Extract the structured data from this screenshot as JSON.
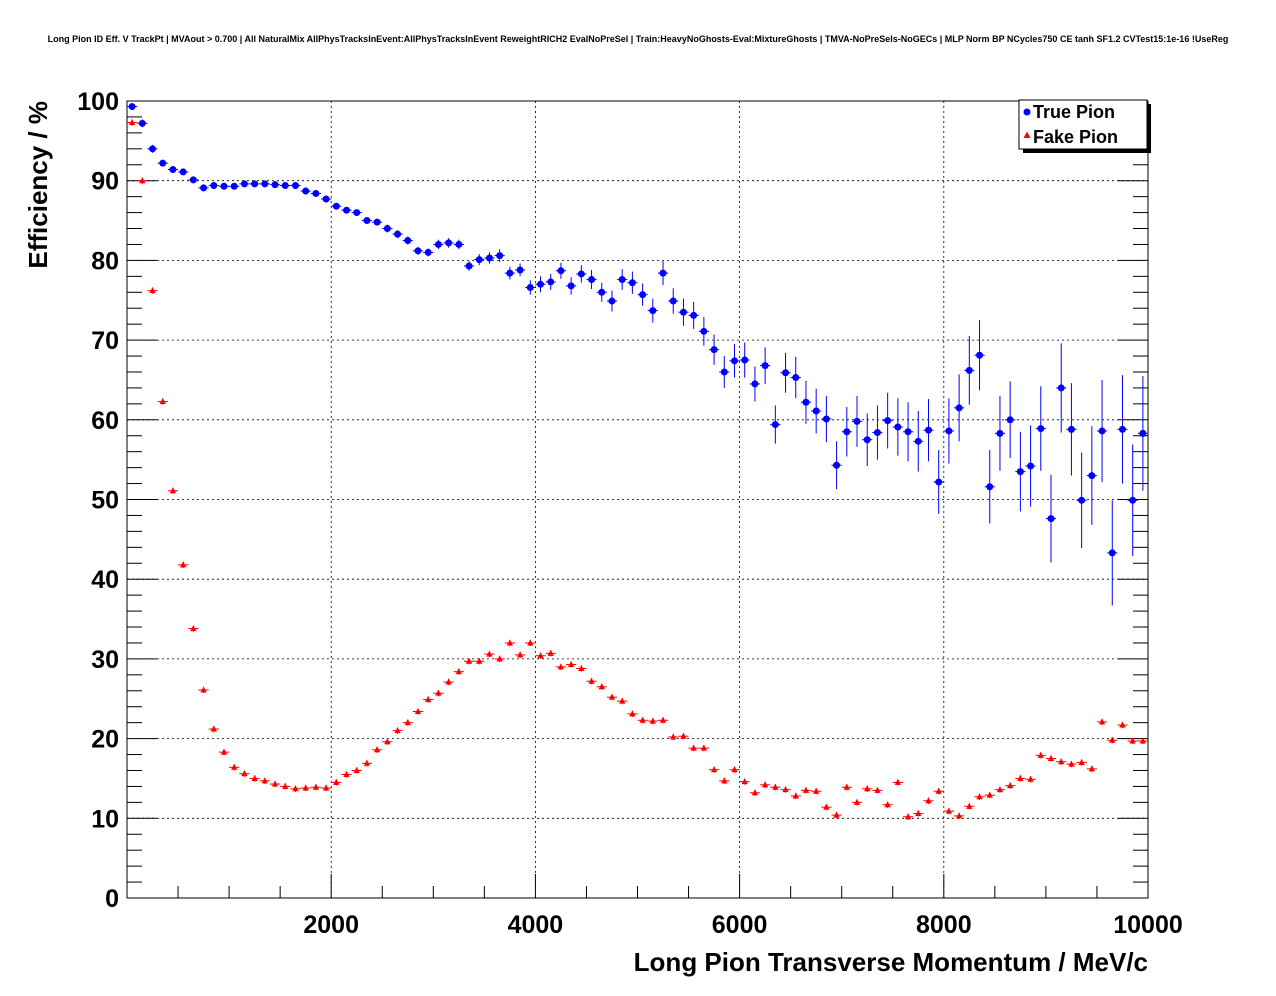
{
  "chart_data": {
    "type": "scatter",
    "title": "Long Pion ID Eff. V TrackPt | MVAout > 0.700 | All NaturalMix AllPhysTracksInEvent:AllPhysTracksInEvent ReweightRICH2 EvalNoPreSel | Train:HeavyNoGhosts-Eval:MixtureGhosts | TMVA-NoPreSels-NoGECs | MLP Norm BP NCycles750 CE tanh SF1.2 CVTest15:1e-16 !UseReg",
    "xlabel": "Long Pion Transverse Momentum / MeV/c",
    "ylabel": "Efficiency / %",
    "xlim": [
      0,
      10000
    ],
    "ylim": [
      0,
      100
    ],
    "grid": true,
    "legend_position": "top-right",
    "x_ticks": [
      2000,
      4000,
      6000,
      8000,
      10000
    ],
    "y_ticks": [
      0,
      10,
      20,
      30,
      40,
      50,
      60,
      70,
      80,
      90,
      100
    ],
    "bin_width": 100,
    "x": [
      50,
      150,
      250,
      350,
      450,
      550,
      650,
      750,
      850,
      950,
      1050,
      1150,
      1250,
      1350,
      1450,
      1550,
      1650,
      1750,
      1850,
      1950,
      2050,
      2150,
      2250,
      2350,
      2450,
      2550,
      2650,
      2750,
      2850,
      2950,
      3050,
      3150,
      3250,
      3350,
      3450,
      3550,
      3650,
      3750,
      3850,
      3950,
      4050,
      4150,
      4250,
      4350,
      4450,
      4550,
      4650,
      4750,
      4850,
      4950,
      5050,
      5150,
      5250,
      5350,
      5450,
      5550,
      5650,
      5750,
      5850,
      5950,
      6050,
      6150,
      6250,
      6350,
      6450,
      6550,
      6650,
      6750,
      6850,
      6950,
      7050,
      7150,
      7250,
      7350,
      7450,
      7550,
      7650,
      7750,
      7850,
      7950,
      8050,
      8150,
      8250,
      8350,
      8450,
      8550,
      8650,
      8750,
      8850,
      8950,
      9050,
      9150,
      9250,
      9350,
      9450,
      9550,
      9650,
      9750,
      9850,
      9950
    ],
    "series": [
      {
        "name": "True Pion",
        "marker": "circle",
        "color": "#0000ff",
        "values": [
          99.3,
          97.2,
          94.0,
          92.2,
          91.4,
          91.1,
          90.1,
          89.1,
          89.4,
          89.3,
          89.3,
          89.6,
          89.6,
          89.6,
          89.5,
          89.4,
          89.4,
          88.7,
          88.4,
          87.7,
          86.8,
          86.3,
          86.0,
          85.0,
          84.8,
          84.0,
          83.3,
          82.5,
          81.2,
          81.0,
          82.0,
          82.2,
          82.0,
          79.3,
          80.1,
          80.3,
          80.6,
          78.4,
          78.8,
          76.6,
          77.0,
          77.3,
          78.7,
          76.8,
          78.3,
          77.6,
          76.0,
          74.9,
          77.6,
          77.2,
          75.7,
          73.7,
          78.4,
          74.9,
          73.5,
          73.1,
          71.1,
          68.8,
          66.0,
          67.4,
          67.5,
          64.5,
          66.8,
          59.4,
          65.9,
          65.3,
          62.2,
          61.1,
          60.1,
          54.3,
          58.5,
          59.8,
          57.5,
          58.4,
          59.9,
          59.1,
          58.5,
          57.3,
          58.7,
          52.2,
          58.6,
          61.5,
          66.2,
          68.1,
          51.6,
          58.3,
          60.0,
          53.5,
          54.2,
          58.9,
          47.6,
          64.0,
          58.8,
          49.9,
          53.0,
          58.6,
          43.3,
          58.8,
          49.9,
          58.3
        ],
        "errors": [
          0.4,
          0.5,
          0.5,
          0.4,
          0.4,
          0.4,
          0.4,
          0.4,
          0.4,
          0.4,
          0.4,
          0.4,
          0.4,
          0.4,
          0.4,
          0.4,
          0.4,
          0.4,
          0.4,
          0.4,
          0.4,
          0.4,
          0.4,
          0.4,
          0.4,
          0.5,
          0.5,
          0.5,
          0.5,
          0.5,
          0.6,
          0.6,
          0.6,
          0.6,
          0.7,
          0.7,
          0.8,
          0.8,
          0.8,
          0.9,
          1.0,
          1.0,
          1.0,
          1.1,
          1.1,
          1.2,
          1.2,
          1.3,
          1.3,
          1.4,
          1.4,
          1.5,
          1.5,
          1.6,
          1.7,
          1.7,
          1.8,
          1.9,
          2.0,
          2.1,
          2.2,
          2.2,
          2.3,
          2.4,
          2.5,
          2.6,
          2.7,
          2.8,
          2.9,
          3.0,
          3.1,
          3.2,
          3.3,
          3.4,
          3.5,
          3.6,
          3.7,
          3.8,
          3.9,
          4.0,
          4.1,
          4.2,
          4.3,
          4.4,
          4.6,
          4.7,
          4.8,
          5.0,
          5.1,
          5.3,
          5.5,
          5.6,
          5.8,
          6.0,
          6.2,
          6.4,
          6.6,
          6.8,
          7.0,
          7.2
        ]
      },
      {
        "name": "Fake Pion",
        "marker": "triangle",
        "color": "#ff0000",
        "values": [
          97.3,
          90.0,
          76.2,
          62.3,
          51.1,
          41.8,
          33.8,
          26.1,
          21.2,
          18.3,
          16.4,
          15.6,
          15.0,
          14.7,
          14.3,
          14.0,
          13.7,
          13.8,
          13.9,
          13.8,
          14.5,
          15.5,
          16.0,
          16.9,
          18.6,
          19.6,
          21.0,
          22.0,
          23.4,
          24.9,
          25.7,
          27.1,
          28.4,
          29.7,
          29.7,
          30.6,
          30.0,
          32.0,
          30.5,
          32.0,
          30.4,
          30.7,
          29.0,
          29.3,
          28.8,
          27.2,
          26.5,
          25.2,
          24.7,
          23.1,
          22.3,
          22.2,
          22.3,
          20.2,
          20.3,
          18.8,
          18.8,
          16.1,
          14.7,
          16.1,
          14.6,
          13.2,
          14.2,
          13.9,
          13.6,
          12.8,
          13.5,
          13.4,
          11.4,
          10.4,
          13.9,
          12.0,
          13.7,
          13.5,
          11.7,
          14.5,
          10.2,
          10.6,
          12.2,
          13.4,
          10.9,
          10.3,
          11.5,
          12.7,
          12.9,
          13.6,
          14.1,
          15.0,
          14.9,
          17.9,
          17.5,
          17.1,
          16.8,
          17.0,
          16.2,
          22.1,
          19.8,
          21.7,
          19.7,
          19.7
        ]
      }
    ],
    "legend": [
      "True Pion",
      "Fake Pion"
    ]
  }
}
